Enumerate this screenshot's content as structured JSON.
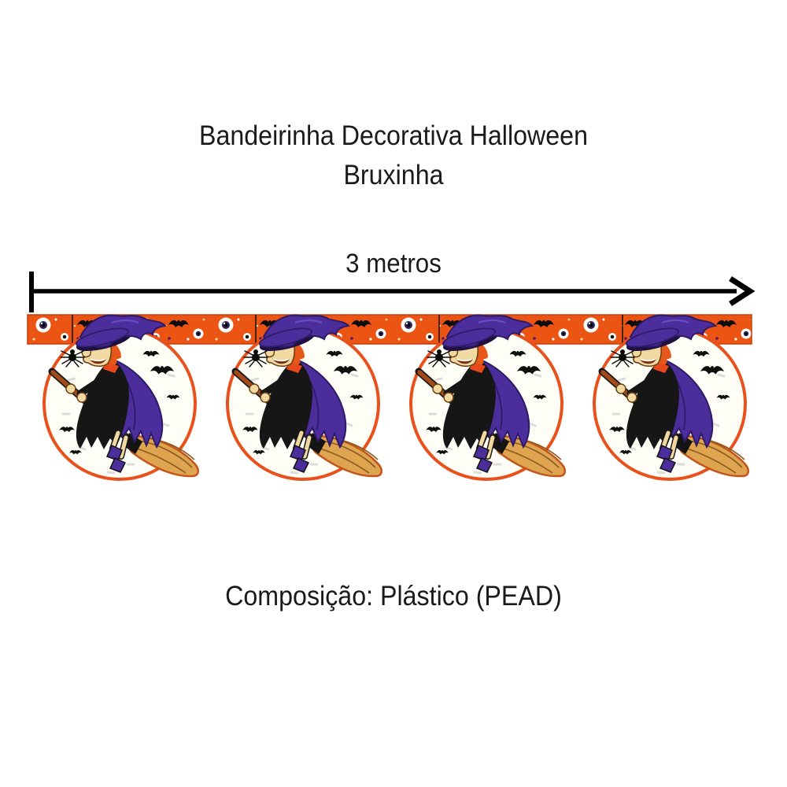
{
  "product": {
    "title_line1": "Bandeirinha Decorativa Halloween",
    "title_line2": "Bruxinha"
  },
  "measurement": {
    "label": "3 metros"
  },
  "composition": {
    "label": "Composição: Plástico (PEAD)"
  },
  "banner": {
    "pennant_count": 4,
    "theme": "witch-on-broomstick-over-moon",
    "icons": [
      "eyeball-icon",
      "bat-icon",
      "spider-icon",
      "witch-icon",
      "moon-icon",
      "broom-icon",
      "witch-hat-icon"
    ],
    "colors": {
      "strip_orange": "#EC5414",
      "strip_border": "#C23E0C",
      "moon_white": "#FFFEF6",
      "moon_outline": "#E8511C",
      "witch_purple": "#4B2E9B",
      "witch_purple_dark": "#2E1A66",
      "witch_purple_light": "#6B4BC4",
      "dress_black": "#161616",
      "skin": "#F2D9A2",
      "skin_outline": "#6B4012",
      "hair_orange": "#E8571A",
      "scarf_red": "#E8491C",
      "broom_handle": "#A34A1A",
      "broom_bristles": "#DFA44F",
      "bristle_streak": "#8A5A20",
      "bristle_outline": "#C2561C",
      "bat_black": "#0E0E0E",
      "iris_navy": "#2B2558",
      "speckle_gray": "#DCDCDC",
      "dot_yellow": "#FFE9A8",
      "text_black": "#1A1A1A"
    }
  }
}
